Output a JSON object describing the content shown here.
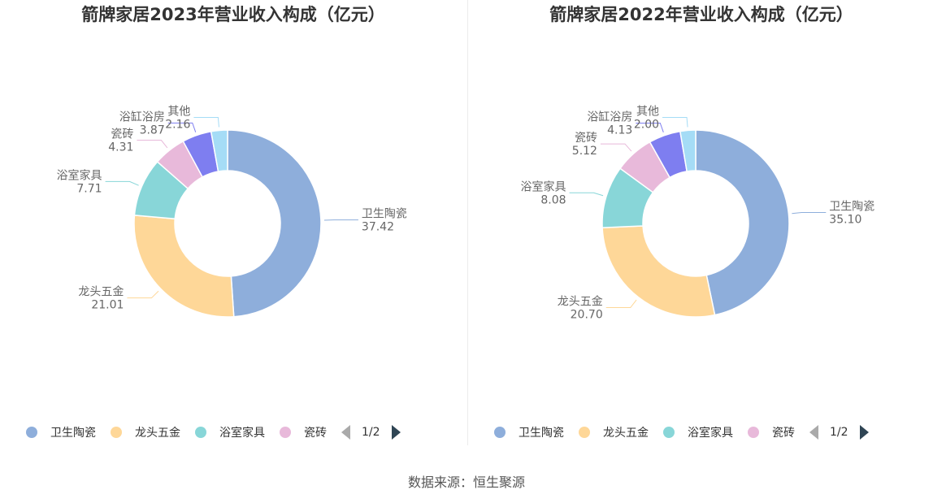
{
  "chart_data": [
    {
      "type": "pie",
      "title": "箭牌家居2023年营业收入构成（亿元）",
      "slices": [
        {
          "label": "卫生陶瓷",
          "value": 37.42,
          "color": "#8eaedb"
        },
        {
          "label": "龙头五金",
          "value": 21.01,
          "color": "#fed798"
        },
        {
          "label": "浴室家具",
          "value": 7.71,
          "color": "#88d6d8"
        },
        {
          "label": "瓷砖",
          "value": 4.31,
          "color": "#e8b9da"
        },
        {
          "label": "浴缸浴房",
          "value": 3.87,
          "color": "#7e7ef0"
        },
        {
          "label": "其他",
          "value": 2.16,
          "color": "#a5dcf6"
        }
      ],
      "value_labels": [
        "37.42",
        "21.01",
        "7.71",
        "4.31",
        "3.87",
        "2.16"
      ],
      "legend": {
        "position": "bottom",
        "visible_items": [
          "卫生陶瓷",
          "龙头五金",
          "浴室家具",
          "瓷砖"
        ],
        "page": "1/2"
      }
    },
    {
      "type": "pie",
      "title": "箭牌家居2022年营业收入构成（亿元）",
      "slices": [
        {
          "label": "卫生陶瓷",
          "value": 35.1,
          "color": "#8eaedb"
        },
        {
          "label": "龙头五金",
          "value": 20.7,
          "color": "#fed798"
        },
        {
          "label": "浴室家具",
          "value": 8.08,
          "color": "#88d6d8"
        },
        {
          "label": "瓷砖",
          "value": 5.12,
          "color": "#e8b9da"
        },
        {
          "label": "浴缸浴房",
          "value": 4.13,
          "color": "#7e7ef0"
        },
        {
          "label": "其他",
          "value": 2.0,
          "color": "#a5dcf6"
        }
      ],
      "value_labels": [
        "35.10",
        "20.70",
        "8.08",
        "5.12",
        "4.13",
        "2.00"
      ],
      "legend": {
        "position": "bottom",
        "visible_items": [
          "卫生陶瓷",
          "龙头五金",
          "浴室家具",
          "瓷砖"
        ],
        "page": "1/2"
      }
    }
  ],
  "footer": {
    "source": "数据来源：恒生聚源"
  }
}
